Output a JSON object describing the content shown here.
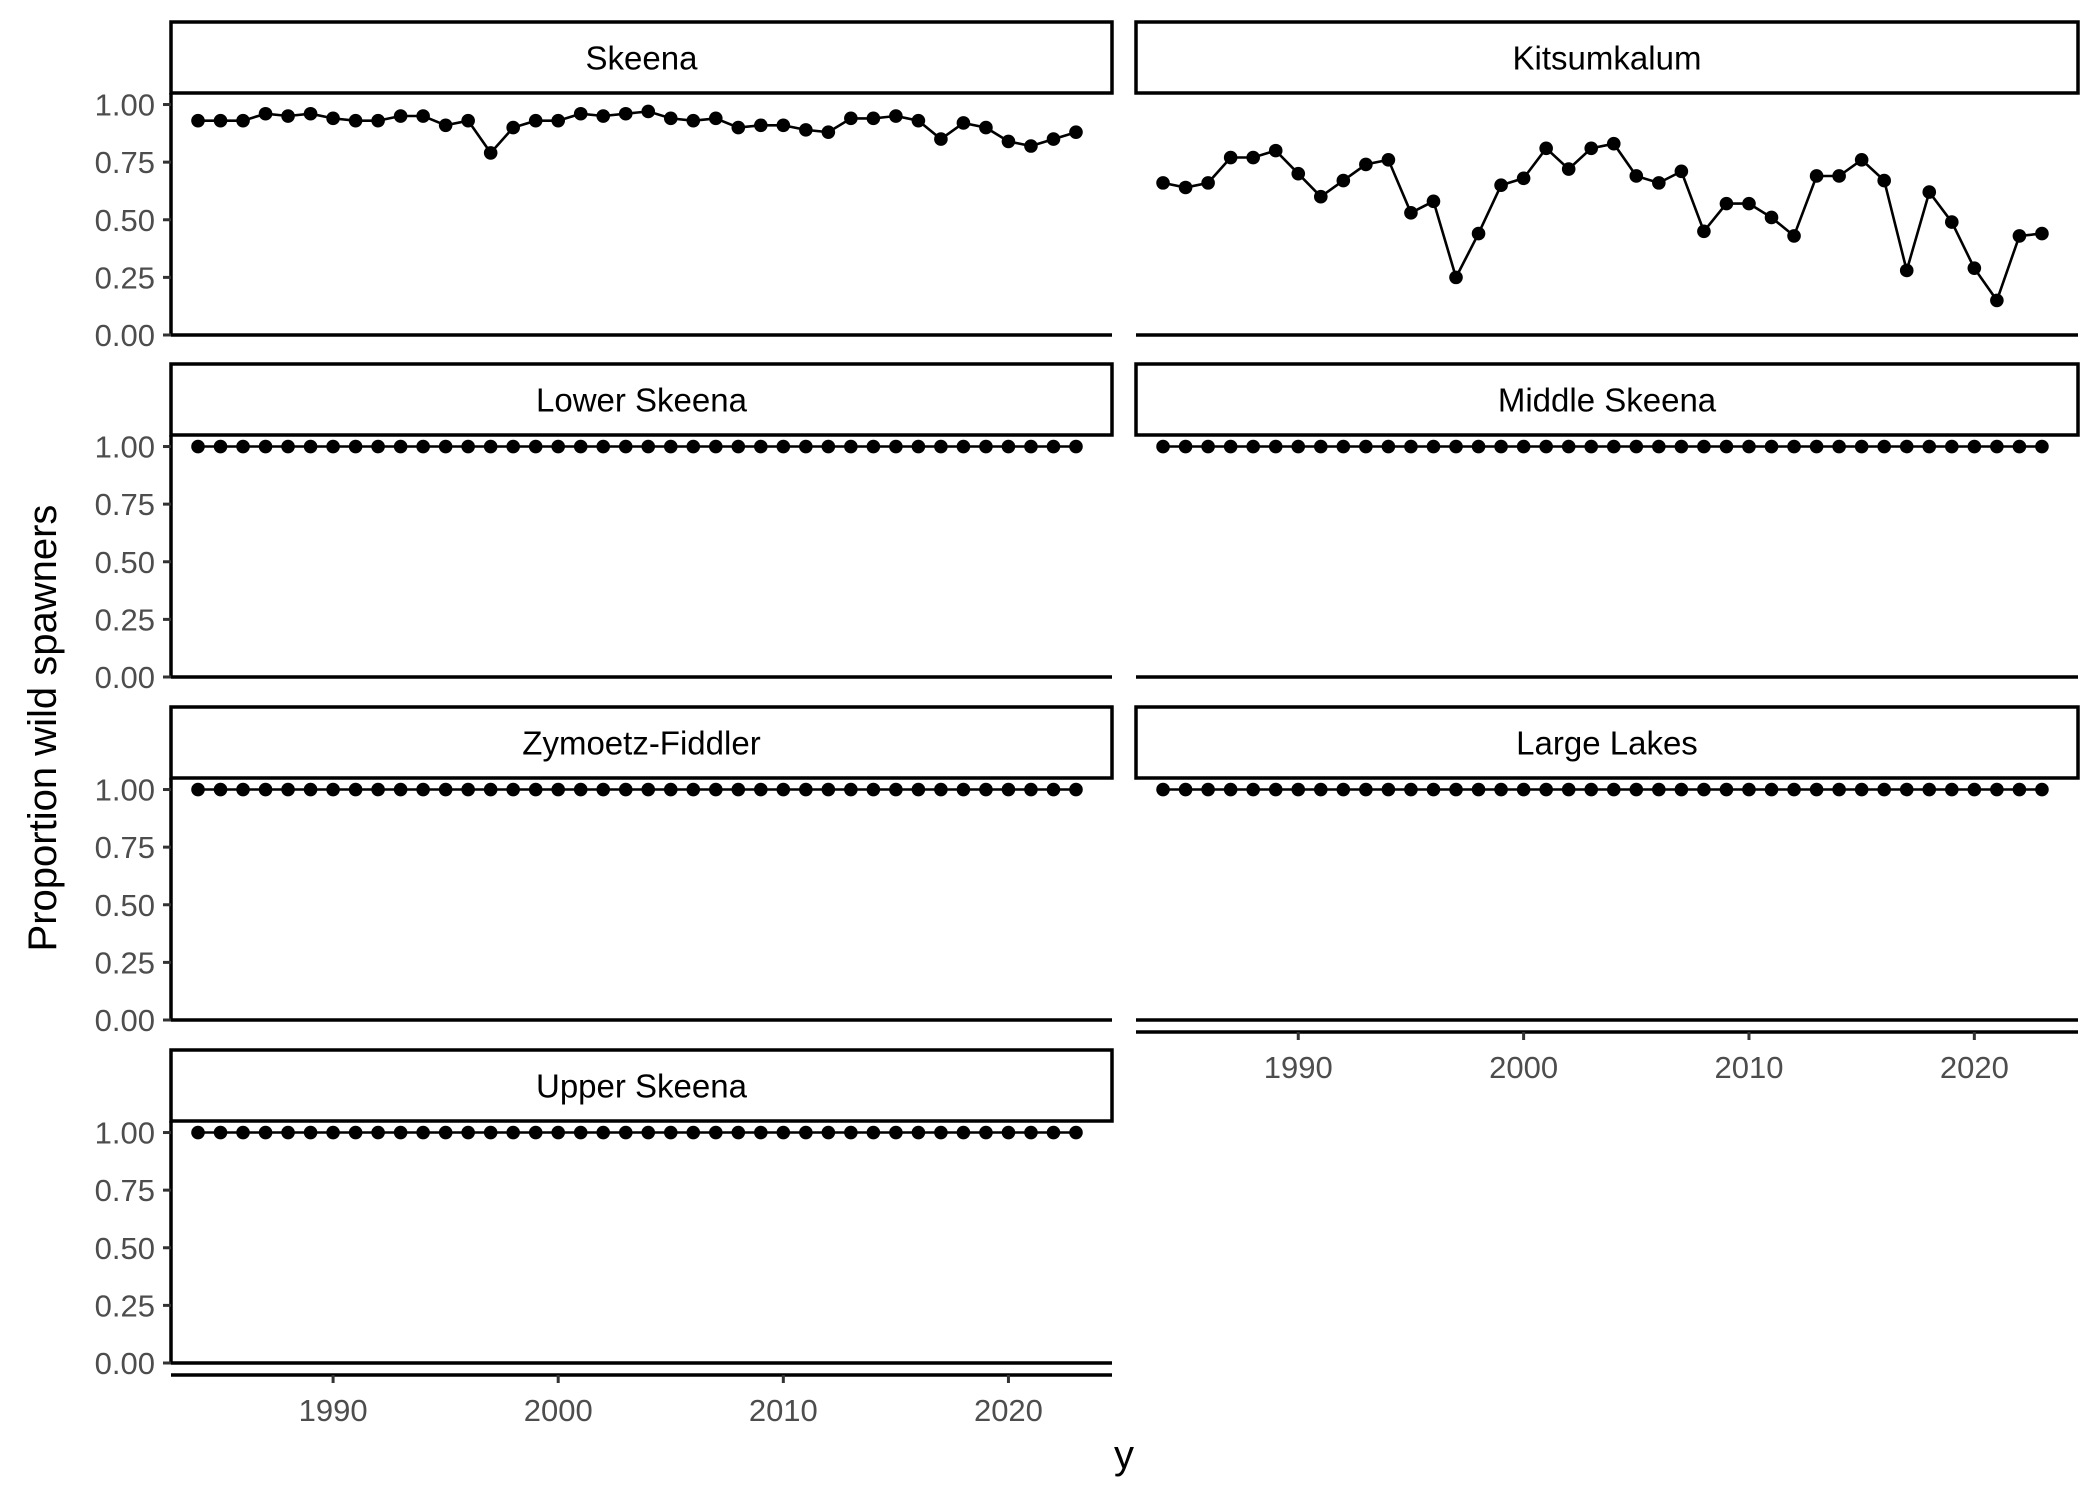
{
  "chart_data": {
    "type": "line",
    "xlabel": "y",
    "ylabel": "Proportion wild spawners",
    "ylim": [
      0,
      1.05
    ],
    "xlim": [
      1982.8,
      2024.6
    ],
    "y_ticks": [
      "0.00",
      "0.25",
      "0.50",
      "0.75",
      "1.00"
    ],
    "x_ticks": [
      "1990",
      "2000",
      "2010",
      "2020"
    ],
    "x": [
      1984,
      1985,
      1986,
      1987,
      1988,
      1989,
      1990,
      1991,
      1992,
      1993,
      1994,
      1995,
      1996,
      1997,
      1998,
      1999,
      2000,
      2001,
      2002,
      2003,
      2004,
      2005,
      2006,
      2007,
      2008,
      2009,
      2010,
      2011,
      2012,
      2013,
      2014,
      2015,
      2016,
      2017,
      2018,
      2019,
      2020,
      2021,
      2022,
      2023
    ],
    "grid": false,
    "legend": "none",
    "panels": [
      {
        "title": "Skeena",
        "values": [
          0.93,
          0.93,
          0.93,
          0.96,
          0.95,
          0.96,
          0.94,
          0.93,
          0.93,
          0.95,
          0.95,
          0.91,
          0.93,
          0.79,
          0.9,
          0.93,
          0.93,
          0.96,
          0.95,
          0.96,
          0.97,
          0.94,
          0.93,
          0.94,
          0.9,
          0.91,
          0.91,
          0.89,
          0.88,
          0.94,
          0.94,
          0.95,
          0.93,
          0.85,
          0.92,
          0.9,
          0.84,
          0.82,
          0.85,
          0.88
        ]
      },
      {
        "title": "Kitsumkalum",
        "values": [
          0.66,
          0.64,
          0.66,
          0.77,
          0.77,
          0.8,
          0.7,
          0.6,
          0.67,
          0.74,
          0.76,
          0.53,
          0.58,
          0.25,
          0.44,
          0.65,
          0.68,
          0.81,
          0.72,
          0.81,
          0.83,
          0.69,
          0.66,
          0.71,
          0.45,
          0.57,
          0.57,
          0.51,
          0.43,
          0.69,
          0.69,
          0.76,
          0.67,
          0.28,
          0.62,
          0.49,
          0.29,
          0.15,
          0.43,
          0.44
        ]
      },
      {
        "title": "Lower Skeena",
        "values": [
          1,
          1,
          1,
          1,
          1,
          1,
          1,
          1,
          1,
          1,
          1,
          1,
          1,
          1,
          1,
          1,
          1,
          1,
          1,
          1,
          1,
          1,
          1,
          1,
          1,
          1,
          1,
          1,
          1,
          1,
          1,
          1,
          1,
          1,
          1,
          1,
          1,
          1,
          1,
          1
        ]
      },
      {
        "title": "Middle Skeena",
        "values": [
          1,
          1,
          1,
          1,
          1,
          1,
          1,
          1,
          1,
          1,
          1,
          1,
          1,
          1,
          1,
          1,
          1,
          1,
          1,
          1,
          1,
          1,
          1,
          1,
          1,
          1,
          1,
          1,
          1,
          1,
          1,
          1,
          1,
          1,
          1,
          1,
          1,
          1,
          1,
          1
        ]
      },
      {
        "title": "Zymoetz-Fiddler",
        "values": [
          1,
          1,
          1,
          1,
          1,
          1,
          1,
          1,
          1,
          1,
          1,
          1,
          1,
          1,
          1,
          1,
          1,
          1,
          1,
          1,
          1,
          1,
          1,
          1,
          1,
          1,
          1,
          1,
          1,
          1,
          1,
          1,
          1,
          1,
          1,
          1,
          1,
          1,
          1,
          1
        ]
      },
      {
        "title": "Large Lakes",
        "values": [
          1,
          1,
          1,
          1,
          1,
          1,
          1,
          1,
          1,
          1,
          1,
          1,
          1,
          1,
          1,
          1,
          1,
          1,
          1,
          1,
          1,
          1,
          1,
          1,
          1,
          1,
          1,
          1,
          1,
          1,
          1,
          1,
          1,
          1,
          1,
          1,
          1,
          1,
          1,
          1
        ]
      },
      {
        "title": "Upper Skeena",
        "values": [
          1,
          1,
          1,
          1,
          1,
          1,
          1,
          1,
          1,
          1,
          1,
          1,
          1,
          1,
          1,
          1,
          1,
          1,
          1,
          1,
          1,
          1,
          1,
          1,
          1,
          1,
          1,
          1,
          1,
          1,
          1,
          1,
          1,
          1,
          1,
          1,
          1,
          1,
          1,
          1
        ]
      }
    ]
  }
}
